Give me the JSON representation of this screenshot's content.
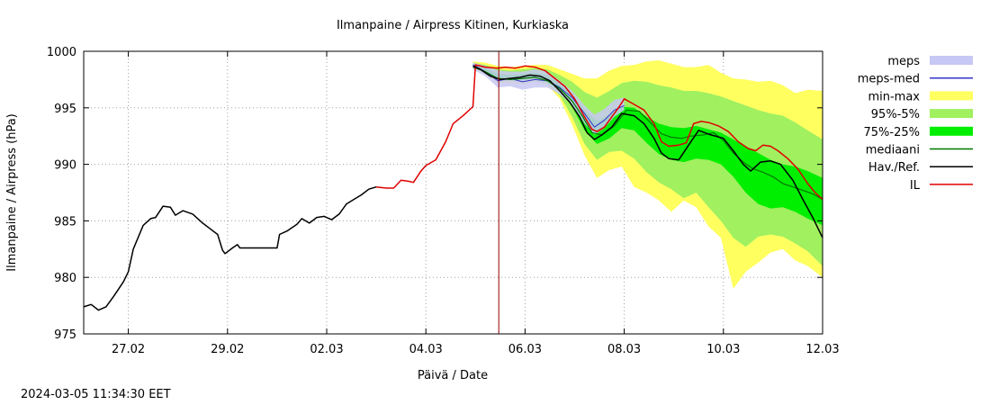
{
  "chart_data": {
    "type": "line",
    "title": "Ilmanpaine / Airpress Kitinen, Kurkiaska",
    "xlabel": "Päivä / Date",
    "ylabel": "Ilmanpaine / Airpress (hPa)",
    "timestamp": "2024-03-05 11:34:30 EET",
    "xlim": [
      -0.9,
      14.0
    ],
    "ylim": [
      975,
      1000
    ],
    "x_unit": "days from 27.02 00:00",
    "yticks": [
      975,
      980,
      985,
      990,
      995,
      1000
    ],
    "xticks": [
      {
        "x": 0,
        "label": "27.02"
      },
      {
        "x": 2,
        "label": "29.02"
      },
      {
        "x": 4,
        "label": "02.03"
      },
      {
        "x": 6,
        "label": "04.03"
      },
      {
        "x": 8,
        "label": "06.03"
      },
      {
        "x": 10,
        "label": "08.03"
      },
      {
        "x": 12,
        "label": "10.03"
      },
      {
        "x": 14,
        "label": "12.03"
      }
    ],
    "grid": true,
    "now_x": 7.47,
    "legend_position": "right",
    "legend": [
      {
        "label": "meps",
        "kind": "box",
        "color": "#c8c8f5"
      },
      {
        "label": "meps-med",
        "kind": "line",
        "color": "#3333cc"
      },
      {
        "label": "min-max",
        "kind": "box",
        "color": "#ffff60"
      },
      {
        "label": "95%-5%",
        "kind": "box",
        "color": "#a0f060"
      },
      {
        "label": "75%-25%",
        "kind": "box",
        "color": "#00ee00"
      },
      {
        "label": "mediaani",
        "kind": "line",
        "color": "#007700"
      },
      {
        "label": "Hav./Ref.",
        "kind": "line",
        "color": "#000000"
      },
      {
        "label": "IL",
        "kind": "line",
        "color": "#e00000"
      }
    ],
    "series": {
      "observed": [
        [
          -0.9,
          977.4
        ],
        [
          -0.75,
          977.6
        ],
        [
          -0.6,
          977.1
        ],
        [
          -0.45,
          977.4
        ],
        [
          -0.3,
          978.3
        ],
        [
          -0.1,
          979.6
        ],
        [
          0.0,
          980.5
        ],
        [
          0.1,
          982.5
        ],
        [
          0.3,
          984.6
        ],
        [
          0.45,
          985.2
        ],
        [
          0.55,
          985.3
        ],
        [
          0.7,
          986.3
        ],
        [
          0.85,
          986.2
        ],
        [
          0.95,
          985.5
        ],
        [
          1.1,
          985.9
        ],
        [
          1.3,
          985.6
        ],
        [
          1.5,
          984.8
        ],
        [
          1.65,
          984.3
        ],
        [
          1.8,
          983.8
        ],
        [
          1.9,
          982.4
        ],
        [
          1.95,
          982.1
        ],
        [
          2.1,
          982.6
        ],
        [
          2.2,
          982.9
        ],
        [
          2.25,
          982.6
        ],
        [
          2.6,
          982.6
        ],
        [
          3.0,
          982.6
        ],
        [
          3.05,
          983.8
        ],
        [
          3.2,
          984.1
        ],
        [
          3.4,
          984.7
        ],
        [
          3.5,
          985.2
        ],
        [
          3.65,
          984.8
        ],
        [
          3.8,
          985.3
        ],
        [
          3.95,
          985.4
        ],
        [
          4.1,
          985.1
        ],
        [
          4.25,
          985.6
        ],
        [
          4.4,
          986.5
        ],
        [
          4.55,
          986.9
        ],
        [
          4.7,
          987.3
        ],
        [
          4.85,
          987.8
        ],
        [
          5.0,
          988.0
        ]
      ],
      "il": [
        [
          5.0,
          988.0
        ],
        [
          5.2,
          987.9
        ],
        [
          5.35,
          987.9
        ],
        [
          5.5,
          988.6
        ],
        [
          5.65,
          988.5
        ],
        [
          5.75,
          988.4
        ],
        [
          5.9,
          989.4
        ],
        [
          6.0,
          989.9
        ],
        [
          6.2,
          990.4
        ],
        [
          6.4,
          992.0
        ],
        [
          6.55,
          993.6
        ],
        [
          6.75,
          994.3
        ],
        [
          6.95,
          995.1
        ],
        [
          7.0,
          998.8
        ],
        [
          7.2,
          998.6
        ],
        [
          7.45,
          998.5
        ],
        [
          7.6,
          998.6
        ],
        [
          7.8,
          998.5
        ],
        [
          8.0,
          998.7
        ],
        [
          8.2,
          998.6
        ],
        [
          8.4,
          998.3
        ],
        [
          8.6,
          997.6
        ],
        [
          8.8,
          996.9
        ],
        [
          9.0,
          995.8
        ],
        [
          9.2,
          994.2
        ],
        [
          9.35,
          993.1
        ],
        [
          9.45,
          992.9
        ],
        [
          9.6,
          993.3
        ],
        [
          9.75,
          994.2
        ],
        [
          9.9,
          995.1
        ],
        [
          10.0,
          995.8
        ],
        [
          10.2,
          995.3
        ],
        [
          10.4,
          994.8
        ],
        [
          10.6,
          993.6
        ],
        [
          10.75,
          992.0
        ],
        [
          10.9,
          991.6
        ],
        [
          11.1,
          991.7
        ],
        [
          11.25,
          991.9
        ],
        [
          11.4,
          993.6
        ],
        [
          11.55,
          993.8
        ],
        [
          11.7,
          993.7
        ],
        [
          11.9,
          993.4
        ],
        [
          12.1,
          992.9
        ],
        [
          12.3,
          992.0
        ],
        [
          12.5,
          991.4
        ],
        [
          12.65,
          991.2
        ],
        [
          12.8,
          991.7
        ],
        [
          12.95,
          991.6
        ],
        [
          13.1,
          991.2
        ],
        [
          13.3,
          990.5
        ],
        [
          13.5,
          989.6
        ],
        [
          13.7,
          988.3
        ],
        [
          13.85,
          987.5
        ],
        [
          14.0,
          986.9
        ]
      ],
      "hav_ref": [
        [
          6.95,
          998.7
        ],
        [
          7.1,
          998.4
        ],
        [
          7.3,
          997.8
        ],
        [
          7.5,
          997.5
        ],
        [
          7.7,
          997.6
        ],
        [
          7.9,
          997.7
        ],
        [
          8.1,
          997.9
        ],
        [
          8.3,
          997.8
        ],
        [
          8.5,
          997.4
        ],
        [
          8.7,
          996.5
        ],
        [
          8.9,
          995.5
        ],
        [
          9.1,
          994.2
        ],
        [
          9.25,
          992.8
        ],
        [
          9.4,
          992.2
        ],
        [
          9.55,
          992.6
        ],
        [
          9.75,
          993.3
        ],
        [
          9.95,
          994.5
        ],
        [
          10.2,
          994.3
        ],
        [
          10.4,
          993.6
        ],
        [
          10.6,
          992.3
        ],
        [
          10.75,
          991.0
        ],
        [
          10.9,
          990.5
        ],
        [
          11.1,
          990.4
        ],
        [
          11.3,
          991.7
        ],
        [
          11.5,
          993.0
        ],
        [
          11.75,
          992.6
        ],
        [
          12.0,
          992.3
        ],
        [
          12.2,
          991.2
        ],
        [
          12.4,
          990.0
        ],
        [
          12.55,
          989.4
        ],
        [
          12.75,
          990.2
        ],
        [
          12.95,
          990.3
        ],
        [
          13.15,
          990.0
        ],
        [
          13.4,
          988.6
        ],
        [
          13.6,
          986.9
        ],
        [
          13.8,
          985.3
        ],
        [
          14.0,
          983.5
        ]
      ],
      "mediaani": [
        [
          6.95,
          998.6
        ],
        [
          7.2,
          998.2
        ],
        [
          7.45,
          997.6
        ],
        [
          7.7,
          997.5
        ],
        [
          7.95,
          997.6
        ],
        [
          8.2,
          997.7
        ],
        [
          8.45,
          997.4
        ],
        [
          8.7,
          996.7
        ],
        [
          8.95,
          995.6
        ],
        [
          9.15,
          994.3
        ],
        [
          9.35,
          992.8
        ],
        [
          9.55,
          992.6
        ],
        [
          9.8,
          993.4
        ],
        [
          10.05,
          994.8
        ],
        [
          10.3,
          994.7
        ],
        [
          10.55,
          993.6
        ],
        [
          10.75,
          992.7
        ],
        [
          10.95,
          992.4
        ],
        [
          11.15,
          992.3
        ],
        [
          11.35,
          992.5
        ],
        [
          11.6,
          992.6
        ],
        [
          11.8,
          992.8
        ],
        [
          12.0,
          992.1
        ],
        [
          12.2,
          991.0
        ],
        [
          12.4,
          990.2
        ],
        [
          12.6,
          989.6
        ],
        [
          12.8,
          989.3
        ],
        [
          13.0,
          988.9
        ],
        [
          13.2,
          988.3
        ],
        [
          13.4,
          988.0
        ],
        [
          13.6,
          987.7
        ],
        [
          13.8,
          987.4
        ],
        [
          14.0,
          986.9
        ]
      ],
      "meps_med": [
        [
          6.95,
          998.8
        ],
        [
          7.2,
          998.2
        ],
        [
          7.45,
          997.4
        ],
        [
          7.7,
          997.6
        ],
        [
          7.95,
          997.3
        ],
        [
          8.2,
          997.5
        ],
        [
          8.45,
          997.4
        ],
        [
          8.7,
          996.8
        ],
        [
          8.95,
          995.9
        ],
        [
          9.2,
          994.5
        ],
        [
          9.4,
          993.3
        ],
        [
          9.6,
          993.9
        ],
        [
          9.8,
          994.8
        ],
        [
          10.0,
          995.2
        ]
      ],
      "meps": {
        "x": [
          6.95,
          7.2,
          7.45,
          7.7,
          7.95,
          8.2,
          8.45,
          8.7,
          8.95,
          9.2,
          9.4,
          9.6,
          9.8,
          10.0
        ],
        "min": [
          998.4,
          997.8,
          996.8,
          996.9,
          996.6,
          996.8,
          996.8,
          996.2,
          995.3,
          993.6,
          992.6,
          993.2,
          994.2,
          994.8
        ],
        "max": [
          999.0,
          998.7,
          998.3,
          998.2,
          998.2,
          998.4,
          998.2,
          997.4,
          996.5,
          995.2,
          994.4,
          994.9,
          995.7,
          995.9
        ]
      },
      "bands": {
        "x": [
          6.95,
          7.2,
          7.45,
          7.7,
          7.95,
          8.2,
          8.45,
          8.7,
          8.95,
          9.2,
          9.45,
          9.7,
          9.95,
          10.2,
          10.45,
          10.7,
          10.95,
          11.2,
          11.45,
          11.7,
          11.95,
          12.2,
          12.45,
          12.7,
          12.95,
          13.2,
          13.45,
          13.7,
          14.0
        ],
        "min": [
          998.5,
          998.0,
          997.2,
          997.2,
          997.1,
          997.3,
          997.0,
          995.8,
          993.5,
          990.8,
          988.8,
          989.5,
          989.8,
          988.0,
          987.5,
          986.8,
          985.8,
          986.8,
          986.2,
          984.5,
          983.5,
          979.0,
          980.5,
          981.3,
          982.2,
          982.5,
          981.5,
          981.0,
          980.0
        ],
        "p05": [
          998.6,
          998.1,
          997.4,
          997.4,
          997.3,
          997.4,
          997.1,
          996.1,
          994.2,
          991.8,
          990.4,
          991.1,
          991.2,
          990.5,
          989.3,
          988.4,
          987.8,
          987.0,
          987.5,
          986.2,
          985.0,
          983.5,
          982.7,
          983.6,
          983.8,
          983.6,
          983.0,
          982.3,
          981.0
        ],
        "p25": [
          998.7,
          998.2,
          997.6,
          997.5,
          997.5,
          997.6,
          997.3,
          996.5,
          995.1,
          993.0,
          991.8,
          992.3,
          993.2,
          993.0,
          991.9,
          990.9,
          990.4,
          990.2,
          990.5,
          990.4,
          990.0,
          988.9,
          987.5,
          986.5,
          986.1,
          986.2,
          985.8,
          985.2,
          984.6
        ],
        "p75": [
          998.9,
          998.5,
          998.0,
          997.9,
          998.0,
          998.1,
          997.9,
          997.2,
          996.3,
          994.8,
          993.8,
          994.4,
          995.1,
          995.0,
          994.2,
          993.6,
          993.3,
          993.2,
          993.4,
          993.1,
          992.8,
          992.2,
          991.6,
          991.0,
          990.4,
          990.0,
          989.8,
          989.4,
          988.8
        ],
        "p95": [
          999.0,
          998.8,
          998.4,
          998.3,
          998.4,
          998.5,
          998.4,
          997.9,
          997.3,
          996.4,
          995.9,
          996.5,
          997.2,
          997.4,
          997.3,
          997.0,
          996.8,
          996.5,
          996.5,
          996.3,
          996.0,
          995.6,
          995.2,
          994.8,
          994.5,
          994.3,
          993.7,
          993.0,
          992.2
        ],
        "max": [
          999.1,
          999.0,
          998.7,
          998.6,
          998.7,
          998.8,
          998.8,
          998.4,
          998.0,
          997.6,
          997.6,
          998.3,
          998.7,
          998.8,
          999.1,
          999.2,
          998.9,
          998.6,
          998.6,
          998.8,
          998.1,
          997.6,
          997.5,
          997.3,
          997.4,
          997.0,
          996.3,
          996.6,
          996.5
        ]
      }
    }
  }
}
